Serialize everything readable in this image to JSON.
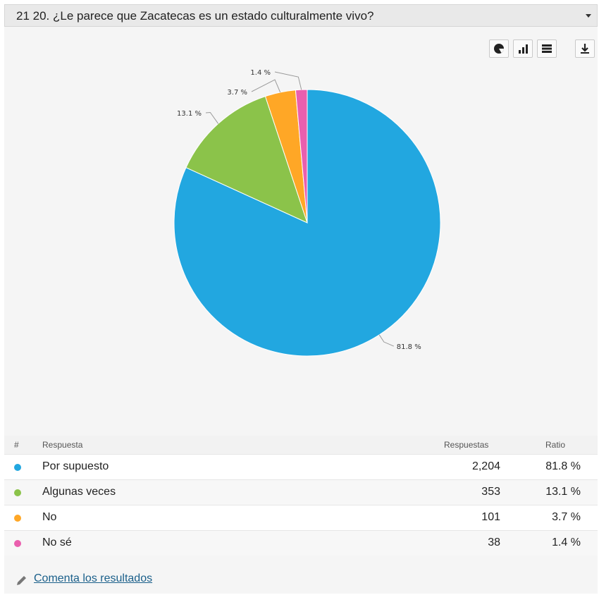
{
  "header": {
    "title": "21 20. ¿Le parece que Zacatecas es un estado culturalmente vivo?"
  },
  "toolbar": {
    "buttons": [
      "pie-chart-icon",
      "bar-chart-icon",
      "table-view-icon",
      "download-icon"
    ]
  },
  "chart_data": {
    "type": "pie",
    "categories": [
      "Por supuesto",
      "Algunas veces",
      "No",
      "No sé"
    ],
    "values": [
      81.8,
      13.1,
      3.7,
      1.4
    ],
    "labels": [
      "81.8 %",
      "13.1 %",
      "3.7 %",
      "1.4 %"
    ],
    "colors": [
      "#22a7e0",
      "#8bc34a",
      "#ffa726",
      "#ea5fae"
    ]
  },
  "table": {
    "headers": {
      "num": "#",
      "answer": "Respuesta",
      "responses": "Respuestas",
      "ratio": "Ratio"
    },
    "rows": [
      {
        "label": "Por supuesto",
        "count": "2,204",
        "ratio": "81.8 %",
        "color": "#22a7e0"
      },
      {
        "label": "Algunas veces",
        "count": "353",
        "ratio": "13.1 %",
        "color": "#8bc34a"
      },
      {
        "label": "No",
        "count": "101",
        "ratio": "3.7 %",
        "color": "#ffa726"
      },
      {
        "label": "No sé",
        "count": "38",
        "ratio": "1.4 %",
        "color": "#ea5fae"
      }
    ]
  },
  "comment_link": "Comenta los resultados"
}
